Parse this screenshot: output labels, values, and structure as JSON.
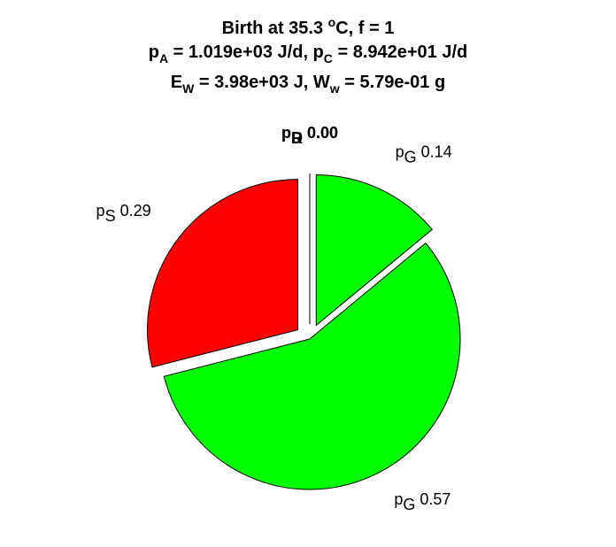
{
  "title": {
    "line1": {
      "a": "Birth at 35.3 ",
      "sup": "o",
      "b": "C, f = 1"
    },
    "line2": {
      "a": "p",
      "sub1": "A",
      "b": " = 1.019e+03 J/d, p",
      "sub2": "C",
      "c": " = 8.942e+01 J/d"
    },
    "line3": {
      "a": "E",
      "sub1": "W",
      "b": " = 3.98e+03 J, W",
      "sub2": "w",
      "c": " = 5.79e-01 g"
    }
  },
  "chart_data": {
    "type": "pie",
    "start": "top",
    "direction": "clockwise",
    "slices": [
      {
        "sym": "p",
        "sub": "R",
        "value": 0.0,
        "label": "0.00",
        "color": "#00ff00",
        "exploded": true
      },
      {
        "sym": "p",
        "sub": "G",
        "value": 0.14,
        "label": "0.14",
        "color": "#00ff00",
        "exploded": true
      },
      {
        "sym": "p",
        "sub": "G",
        "value": 0.57,
        "label": "0.57",
        "color": "#00ff00",
        "exploded": false
      },
      {
        "sym": "p",
        "sub": "S",
        "value": 0.29,
        "label": "0.29",
        "color": "#ff0000",
        "exploded": true
      },
      {
        "sym": "p",
        "sub": "D",
        "value": 0.0,
        "label": "0.00",
        "color": "#ff0000",
        "exploded": true
      }
    ]
  }
}
